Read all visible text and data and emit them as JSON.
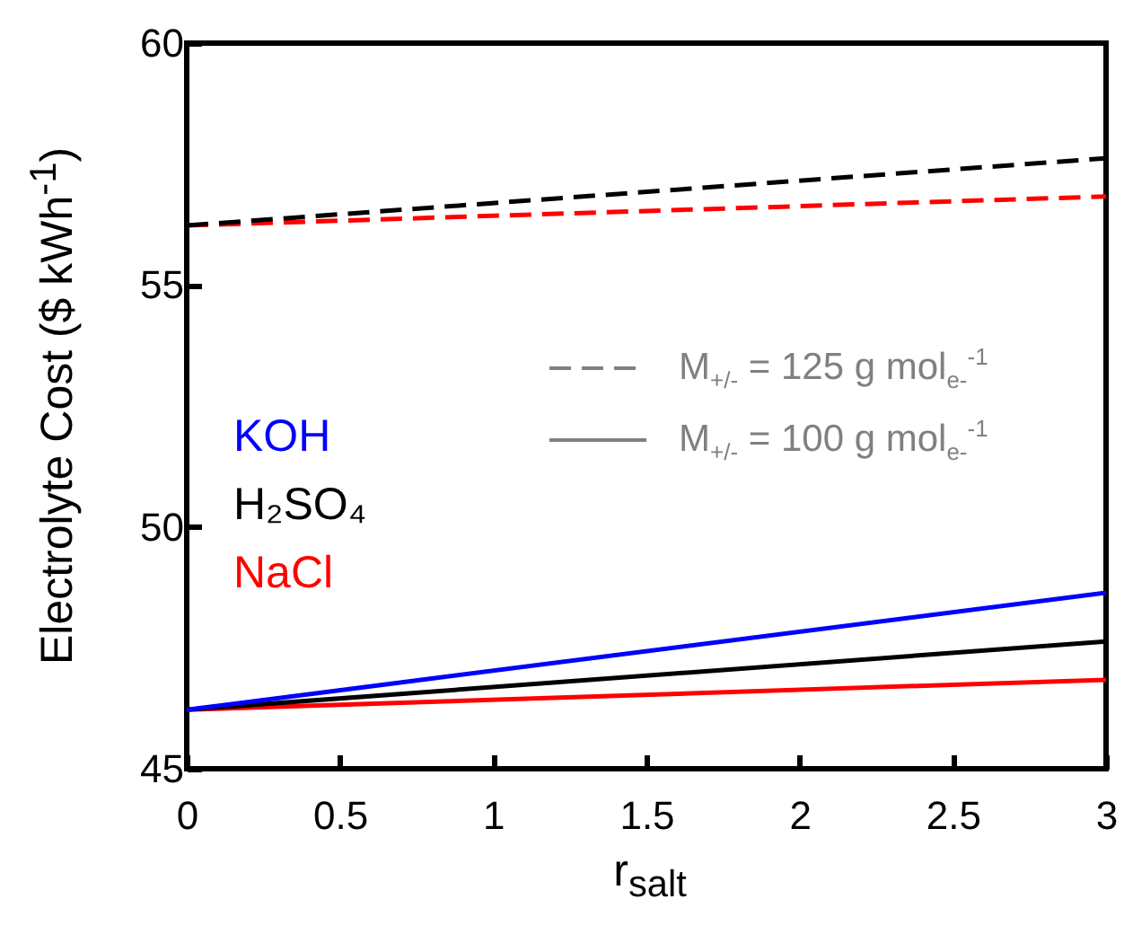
{
  "chart_data": {
    "type": "line",
    "xlabel": "r$_{salt}$",
    "ylabel": "Electrolyte Cost ($ kWh$^{-1}$)",
    "x": [
      0,
      3
    ],
    "xlim": [
      0,
      3
    ],
    "xticks": [
      0,
      0.5,
      1,
      1.5,
      2,
      2.5,
      3
    ],
    "ylim": [
      45,
      60
    ],
    "yticks": [
      45,
      50,
      55,
      60
    ],
    "grid": false,
    "line_style": "solid",
    "series": [
      {
        "name": "KOH",
        "color": "#0000ff",
        "values": [
          46.22,
          48.64
        ]
      },
      {
        "name": "H₂SO₄",
        "color": "#000000",
        "values": [
          46.22,
          47.63
        ]
      },
      {
        "name": "NaCl",
        "color": "#ff0000",
        "values": [
          46.22,
          46.84
        ]
      },
      {
        "color": "#000000",
        "values": [
          56.23,
          57.62
        ],
        "line_style": "dashed"
      },
      {
        "color": "#ff0000",
        "values": [
          56.23,
          56.83
        ],
        "line_style": "dashed"
      }
    ],
    "annotations": [
      "M$_{+/-}$ = 125 g mol$_{e-}$$^{-1}$",
      "M$_{+/-}$ = 100 g mol$_{e-}$$^{-1}$"
    ]
  }
}
